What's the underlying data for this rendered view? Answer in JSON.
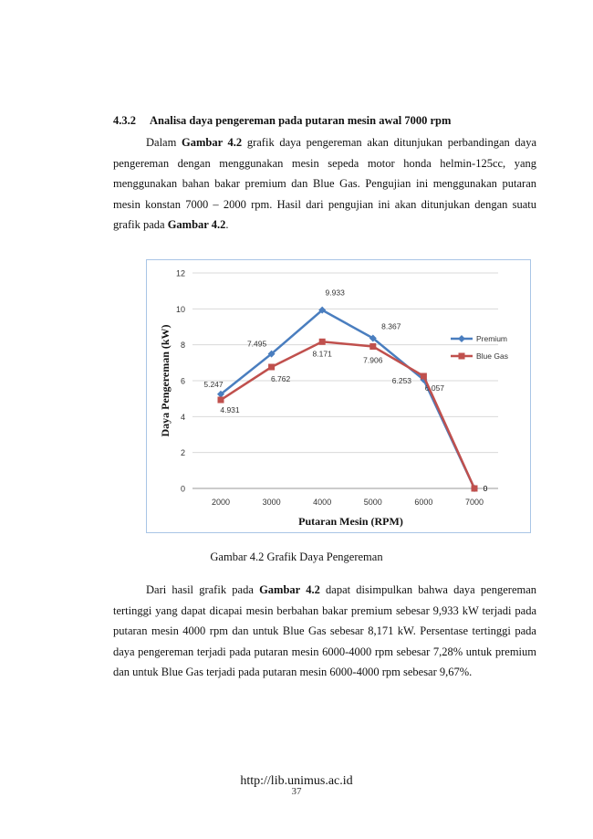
{
  "section": {
    "number": "4.3.2",
    "title": "Analisa daya pengereman pada putaran mesin awal 7000 rpm"
  },
  "paragraph1": {
    "s1_a": "Dalam ",
    "s1_b": "Gambar 4.2",
    "s1_c": " grafik daya pengereman akan ditunjukan perbandingan daya pengereman dengan menggunakan mesin sepeda motor honda helmin-125cc, yang menggunakan bahan bakar premium dan Blue Gas. Pengujian ini menggunakan putaran mesin konstan 7000 – 2000 rpm. Hasil dari pengujian ini akan ditunjukan dengan suatu grafik pada ",
    "s1_d": "Gambar 4.2",
    "s1_e": "."
  },
  "caption": "Gambar 4.2  Grafik Daya Pengereman",
  "paragraph2": {
    "a": "Dari hasil grafik pada ",
    "b": "Gambar 4.2",
    "c": " dapat disimpulkan bahwa daya  pengereman tertinggi yang dapat dicapai mesin berbahan bakar premium sebesar 9,933 kW terjadi pada putaran mesin 4000 rpm dan untuk Blue Gas sebesar 8,171 kW. Persentase tertinggi pada daya pengereman terjadi pada putaran mesin 6000-4000 rpm sebesar 7,28% untuk premium dan untuk Blue Gas terjadi pada putaran mesin 6000-4000 rpm sebesar 9,67%."
  },
  "footer": {
    "url": "http://lib.unimus.ac.id",
    "page": "37"
  },
  "chart_data": {
    "type": "line",
    "title": "",
    "xlabel": "Putaran Mesin (RPM)",
    "ylabel": "Daya Pengereman (kW)",
    "categories": [
      2000,
      3000,
      4000,
      5000,
      6000,
      7000
    ],
    "ylim": [
      0,
      12
    ],
    "yticks": [
      0,
      2,
      4,
      6,
      8,
      10,
      12
    ],
    "grid": true,
    "legend": "right",
    "series": [
      {
        "name": "Premium",
        "color": "#4a7ebf",
        "marker": "diamond",
        "values": [
          5.247,
          7.495,
          9.933,
          8.367,
          6.057,
          0
        ],
        "labels": [
          "5.247",
          "7.495",
          "9.933",
          "8.367",
          "6.057",
          "0"
        ]
      },
      {
        "name": "Blue Gas",
        "color": "#c0504d",
        "marker": "square",
        "values": [
          4.931,
          6.762,
          8.171,
          7.906,
          6.253,
          0
        ],
        "labels": [
          "4.931",
          "6.762",
          "8.171",
          "7.906",
          "6.253",
          "0"
        ]
      }
    ]
  }
}
